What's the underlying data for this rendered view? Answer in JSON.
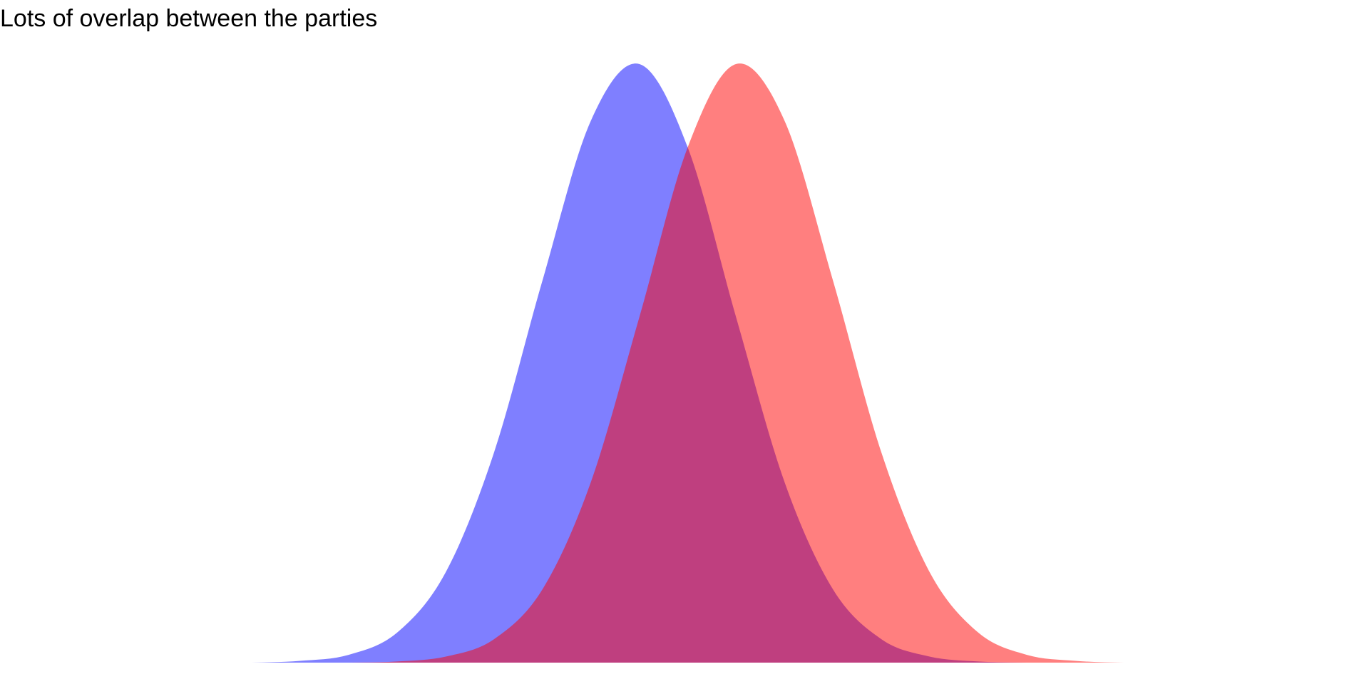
{
  "chart_data": {
    "type": "area",
    "title": "Lots of overlap between the parties",
    "x": [
      -5.5,
      -5,
      -4.5,
      -4,
      -3.5,
      -3,
      -2.5,
      -2,
      -1.5,
      -1,
      -0.5,
      0,
      0.5,
      1,
      1.5,
      2,
      2.5,
      3,
      3.5,
      4,
      4.5,
      5,
      5.5
    ],
    "series": [
      {
        "color": "#0000ff",
        "values": [
          0,
          0,
          0,
          0.003,
          0.013,
          0.05,
          0.15,
          0.35,
          0.637,
          0.904,
          0.999,
          0.86,
          0.576,
          0.301,
          0.122,
          0.039,
          0.01,
          0.002,
          0,
          0,
          0,
          0,
          0
        ]
      },
      {
        "color": "#ff0000",
        "values": [
          0,
          0,
          0,
          0,
          0,
          0.002,
          0.01,
          0.039,
          0.122,
          0.301,
          0.576,
          0.86,
          0.999,
          0.904,
          0.637,
          0.35,
          0.15,
          0.05,
          0.013,
          0.003,
          0,
          0,
          0
        ]
      }
    ],
    "xlim": [
      -5.5,
      5.5
    ],
    "ylim": [
      0,
      1
    ]
  }
}
